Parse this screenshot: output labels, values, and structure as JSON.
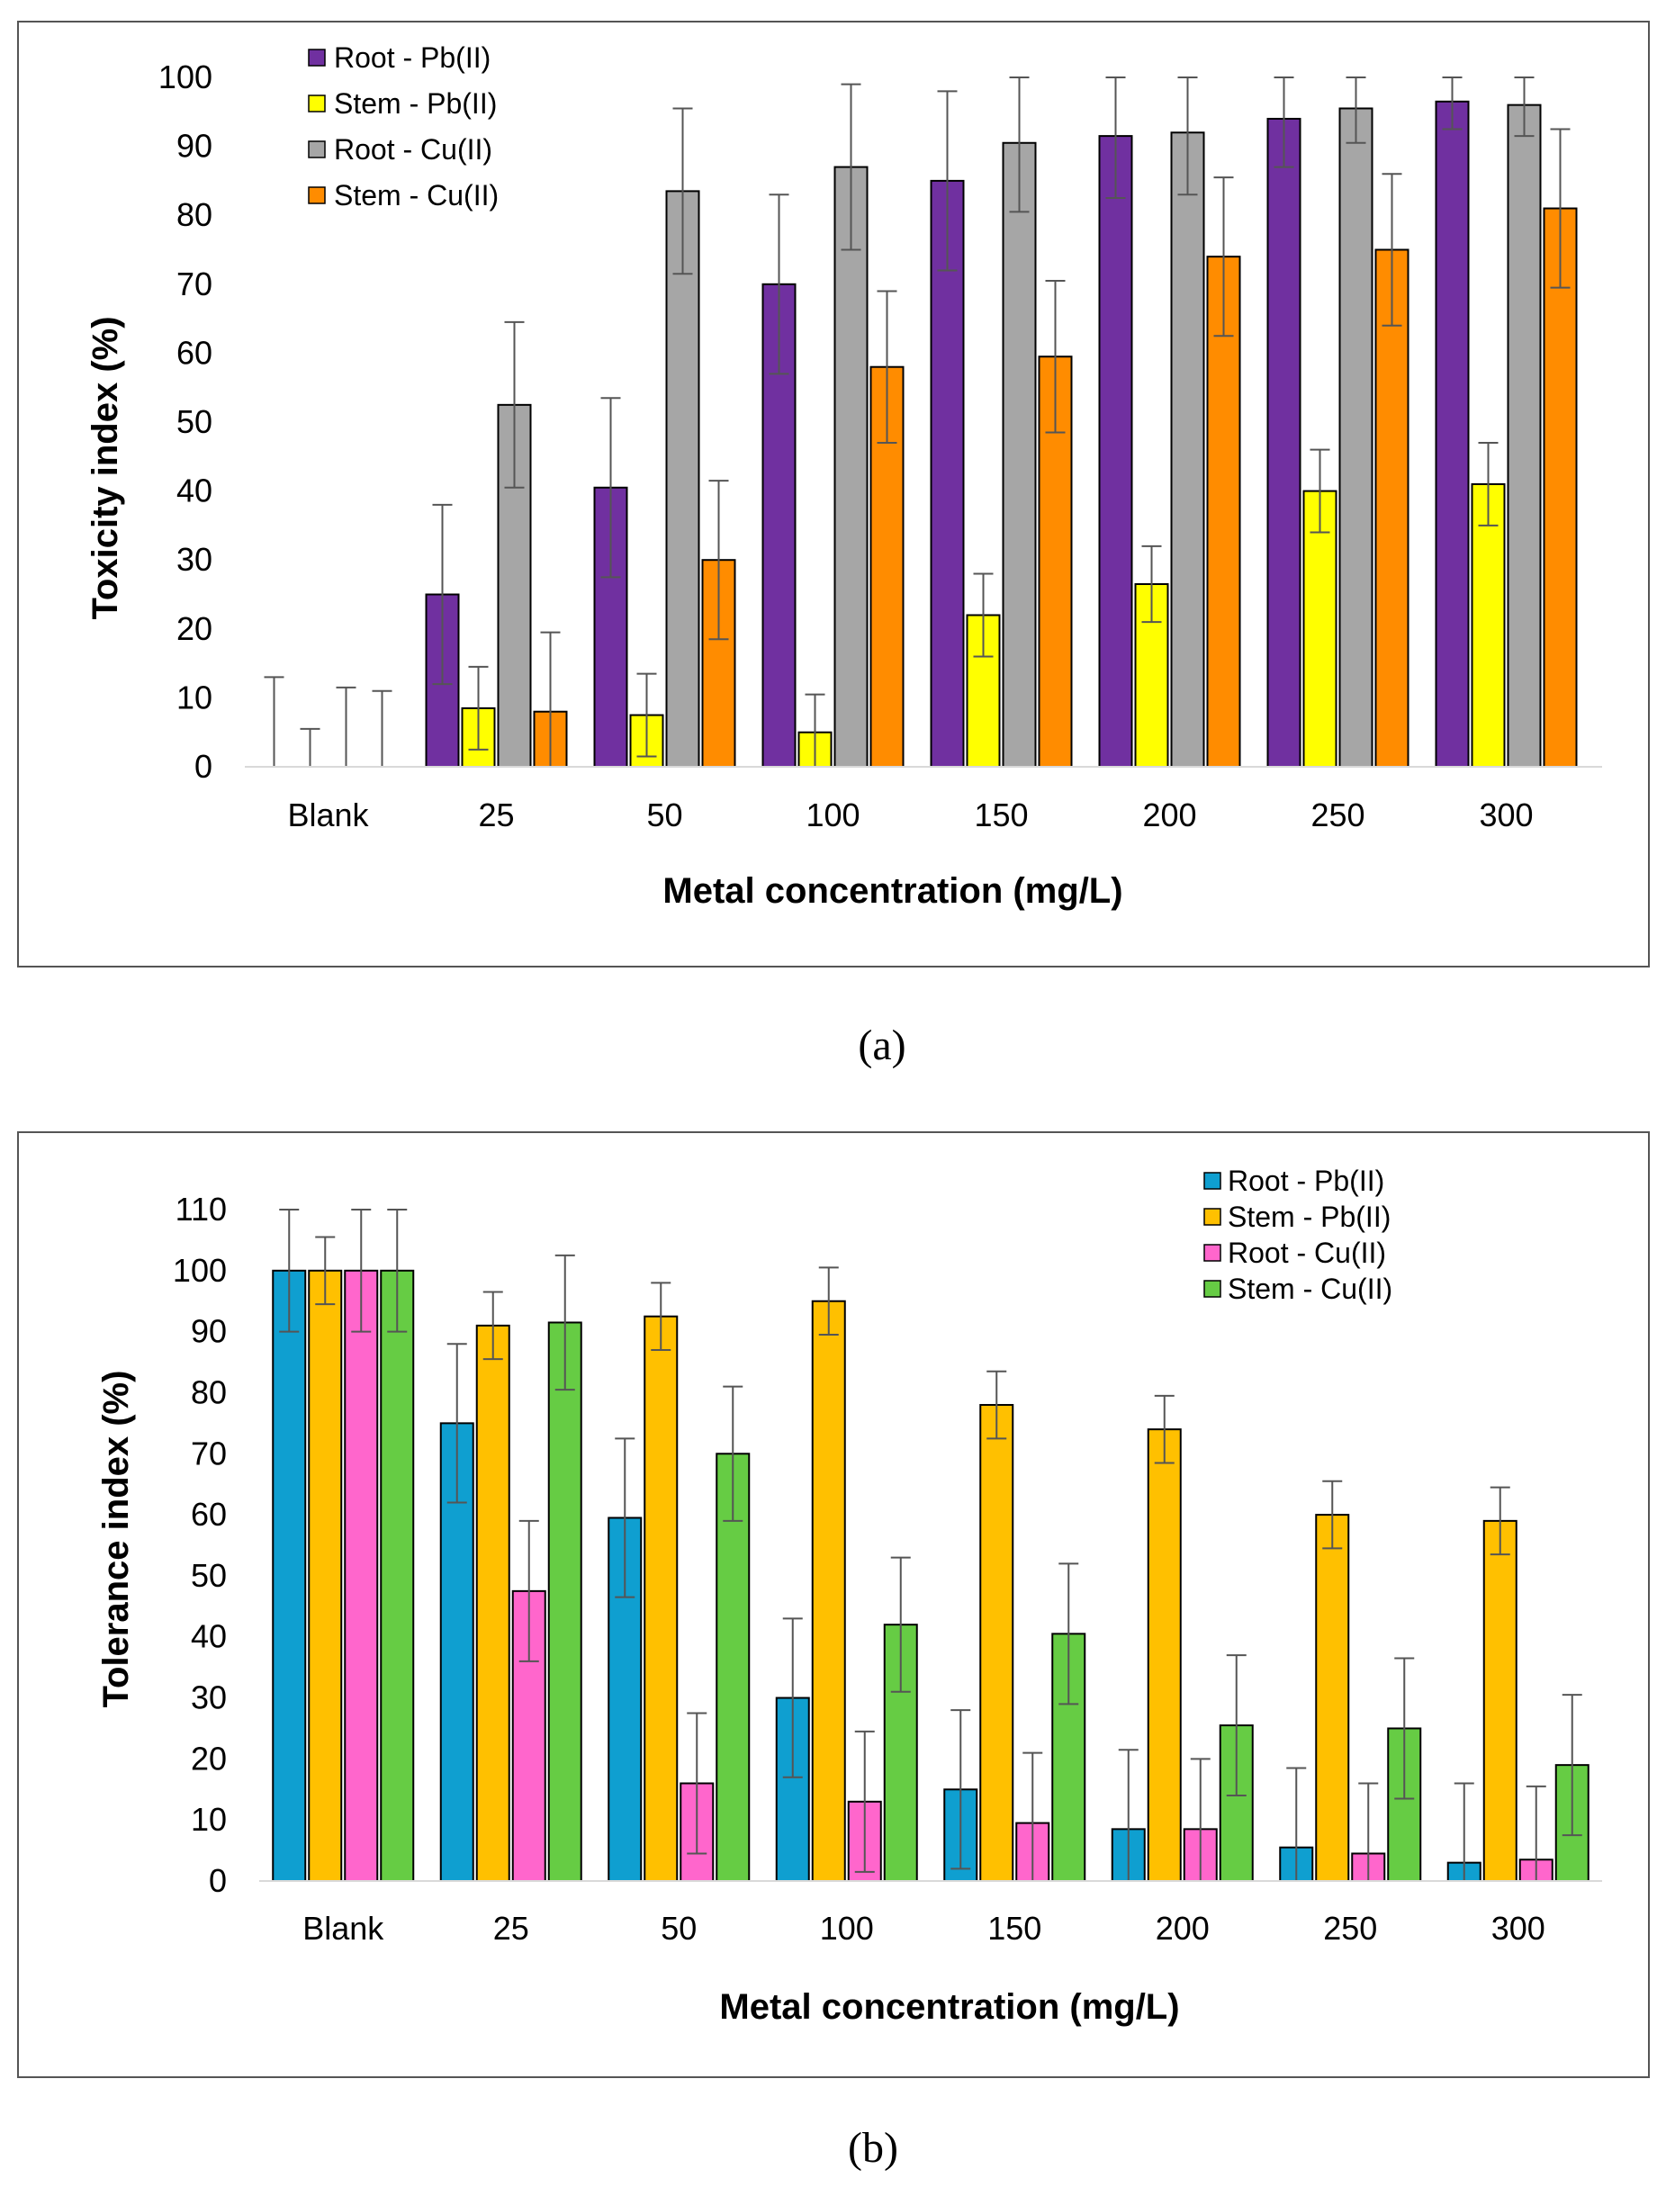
{
  "chart_data": [
    {
      "type": "bar",
      "caption": "(a)",
      "categories": [
        "Blank",
        "25",
        "50",
        "100",
        "150",
        "200",
        "250",
        "300"
      ],
      "xlabel": "Metal concentration (mg/L)",
      "ylabel": "Toxicity index (%)",
      "ylim": [
        0,
        100
      ],
      "yticks": [
        0,
        10,
        20,
        30,
        40,
        50,
        60,
        70,
        80,
        90,
        100
      ],
      "legend_position": "top-left",
      "series": [
        {
          "name": "Root - Pb(II)",
          "color": "#7030a0",
          "values": [
            0,
            25,
            40.5,
            70,
            85,
            91.5,
            94,
            96.5
          ],
          "errors": [
            13,
            13,
            13,
            13,
            13,
            9,
            7,
            4
          ]
        },
        {
          "name": "Stem - Pb(II)",
          "color": "#ffff00",
          "values": [
            0,
            8.5,
            7.5,
            5,
            22,
            26.5,
            40,
            41
          ],
          "errors": [
            5.5,
            6,
            6,
            5.5,
            6,
            5.5,
            6,
            6
          ]
        },
        {
          "name": "Root - Cu(II)",
          "color": "#a6a6a6",
          "values": [
            0,
            52.5,
            83.5,
            87,
            90.5,
            92,
            95.5,
            96
          ],
          "errors": [
            11.5,
            12,
            12,
            12,
            10,
            9,
            5,
            4.5
          ]
        },
        {
          "name": "Stem - Cu(II)",
          "color": "#ff8c00",
          "values": [
            0,
            8,
            30,
            58,
            59.5,
            74,
            75,
            81
          ],
          "errors": [
            11,
            11.5,
            11.5,
            11,
            11,
            11.5,
            11,
            11.5
          ]
        }
      ]
    },
    {
      "type": "bar",
      "caption": "(b)",
      "categories": [
        "Blank",
        "25",
        "50",
        "100",
        "150",
        "200",
        "250",
        "300"
      ],
      "xlabel": "Metal concentration (mg/L)",
      "ylabel": "Tolerance index (%)",
      "ylim": [
        0,
        110
      ],
      "yticks": [
        0,
        10,
        20,
        30,
        40,
        50,
        60,
        70,
        80,
        90,
        100,
        110
      ],
      "legend_position": "top-right",
      "series": [
        {
          "name": "Root - Pb(II)",
          "color": "#0f9fd0",
          "values": [
            100,
            75,
            59.5,
            30,
            15,
            8.5,
            5.5,
            3
          ],
          "errors": [
            10,
            13,
            13,
            13,
            13,
            13,
            13,
            13
          ]
        },
        {
          "name": "Stem - Pb(II)",
          "color": "#ffc000",
          "values": [
            100,
            91,
            92.5,
            95,
            78,
            74,
            60,
            59
          ],
          "errors": [
            5.5,
            5.5,
            5.5,
            5.5,
            5.5,
            5.5,
            5.5,
            5.5
          ]
        },
        {
          "name": "Root - Cu(II)",
          "color": "#ff66cc",
          "values": [
            100,
            47.5,
            16,
            13,
            9.5,
            8.5,
            4.5,
            3.5
          ],
          "errors": [
            10,
            11.5,
            11.5,
            11.5,
            11.5,
            11.5,
            11.5,
            12
          ]
        },
        {
          "name": "Stem - Cu(II)",
          "color": "#66cc44",
          "values": [
            100,
            91.5,
            70,
            42,
            40.5,
            25.5,
            25,
            19
          ],
          "errors": [
            10,
            11,
            11,
            11,
            11.5,
            11.5,
            11.5,
            11.5
          ]
        }
      ]
    }
  ]
}
